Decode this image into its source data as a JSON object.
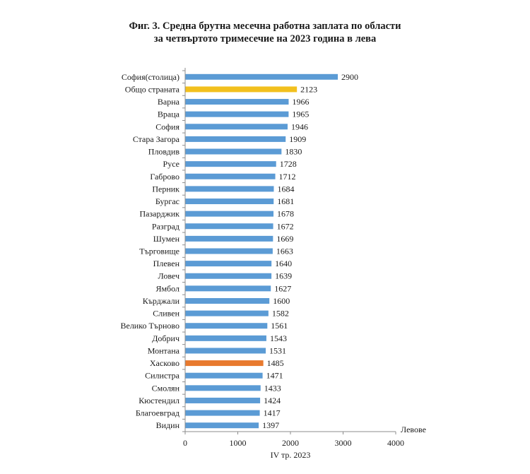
{
  "chart_data": {
    "type": "bar",
    "orientation": "horizontal",
    "title_line1": "Фиг. 3. Средна брутна месечна работна заплата по области",
    "title_line2": "за четвъртото тримесечие на 2023 година в лева",
    "xlabel": "IV тр. 2023",
    "unit_label": "Левове",
    "xlim": [
      0,
      4000
    ],
    "xticks": [
      0,
      1000,
      2000,
      3000,
      4000
    ],
    "grid": false,
    "categories": [
      "София(столица)",
      "Общо страната",
      "Варна",
      "Враца",
      "София",
      "Стара Загора",
      "Пловдив",
      "Русе",
      "Габрово",
      "Перник",
      "Бургас",
      "Пазарджик",
      "Разград",
      "Шумен",
      "Търговище",
      "Плевен",
      "Ловеч",
      "Ямбол",
      "Кърджали",
      "Сливен",
      "Велико Търново",
      "Добрич",
      "Монтана",
      "Хасково",
      "Силистра",
      "Смолян",
      "Кюстендил",
      "Благоевград",
      "Видин"
    ],
    "values": [
      2900,
      2123,
      1966,
      1965,
      1946,
      1909,
      1830,
      1728,
      1712,
      1684,
      1681,
      1678,
      1672,
      1669,
      1663,
      1640,
      1639,
      1627,
      1600,
      1582,
      1561,
      1543,
      1531,
      1485,
      1471,
      1433,
      1424,
      1417,
      1397
    ],
    "highlight": {
      "Общо страната": "#f2c01e",
      "Хасково": "#e87a2e"
    },
    "colors": {
      "default_bar": "#5b9bd5",
      "axis": "#8c8c8c"
    }
  }
}
